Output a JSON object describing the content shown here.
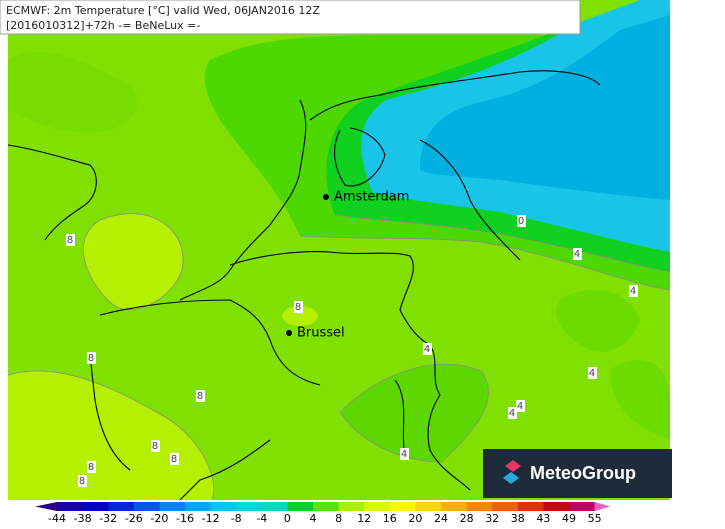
{
  "header": {
    "line1": "ECMWF: 2m Temperature [°C] valid Wed, 06JAN2016 12Z",
    "line2": "[2016010312]+72h -= BeNeLux =-"
  },
  "cities": [
    {
      "label": "Amsterdam"
    },
    {
      "label": "Brussel"
    }
  ],
  "contour_labels": [
    "8",
    "8",
    "8",
    "8",
    "8",
    "8",
    "8",
    "8",
    "4",
    "4",
    "4",
    "4",
    "4",
    "4",
    "4",
    "0"
  ],
  "colorbar": {
    "colors": [
      "#2a0088",
      "#1a00a8",
      "#0000c8",
      "#0024e0",
      "#0054f0",
      "#0084f8",
      "#00a8f8",
      "#00c8f0",
      "#00d8e0",
      "#00d8c0",
      "#00d030",
      "#60e000",
      "#a8f000",
      "#d8f800",
      "#f8f800",
      "#f8d800",
      "#f8b000",
      "#f88800",
      "#f06000",
      "#e03000",
      "#c80010",
      "#c00060",
      "#f060c0"
    ],
    "ticks": [
      -44,
      -38,
      -32,
      -26,
      -20,
      -16,
      -12,
      -8,
      -4,
      0,
      4,
      8,
      12,
      16,
      20,
      24,
      28,
      32,
      38,
      43,
      49,
      55
    ]
  },
  "logo": {
    "text": "MeteoGroup"
  }
}
